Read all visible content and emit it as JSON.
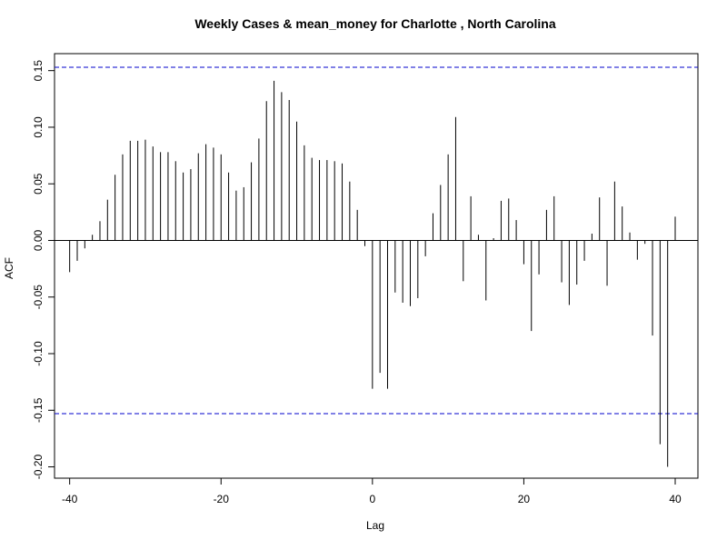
{
  "chart_data": {
    "type": "bar",
    "title": "Weekly Cases & mean_money for Charlotte , North Carolina",
    "xlabel": "Lag",
    "ylabel": "ACF",
    "xlim": [
      -42,
      43
    ],
    "ylim": [
      -0.21,
      0.165
    ],
    "x_ticks": [
      -40,
      -20,
      0,
      20,
      40
    ],
    "x_tick_labels": [
      "-40",
      "-20",
      "0",
      "20",
      "40"
    ],
    "y_ticks": [
      -0.2,
      -0.15,
      -0.1,
      -0.05,
      0.0,
      0.05,
      0.1,
      0.15
    ],
    "y_tick_labels": [
      "-0.20",
      "-0.15",
      "-0.10",
      "-0.05",
      "0.00",
      "0.05",
      "0.10",
      "0.15"
    ],
    "confidence_bound": 0.153,
    "confidence_color": "#0000CC",
    "line_color": "#000000",
    "grid": false,
    "x": [
      -40,
      -39,
      -38,
      -37,
      -36,
      -35,
      -34,
      -33,
      -32,
      -31,
      -30,
      -29,
      -28,
      -27,
      -26,
      -25,
      -24,
      -23,
      -22,
      -21,
      -20,
      -19,
      -18,
      -17,
      -16,
      -15,
      -14,
      -13,
      -12,
      -11,
      -10,
      -9,
      -8,
      -7,
      -6,
      -5,
      -4,
      -3,
      -2,
      -1,
      0,
      1,
      2,
      3,
      4,
      5,
      6,
      7,
      8,
      9,
      10,
      11,
      12,
      13,
      14,
      15,
      16,
      17,
      18,
      19,
      20,
      21,
      22,
      23,
      24,
      25,
      26,
      27,
      28,
      29,
      30,
      31,
      32,
      33,
      34,
      35,
      36,
      37,
      38,
      39,
      40
    ],
    "values": [
      -0.028,
      -0.018,
      -0.007,
      0.005,
      0.017,
      0.036,
      0.058,
      0.076,
      0.088,
      0.088,
      0.089,
      0.083,
      0.078,
      0.078,
      0.07,
      0.06,
      0.063,
      0.077,
      0.085,
      0.082,
      0.076,
      0.06,
      0.044,
      0.047,
      0.069,
      0.09,
      0.123,
      0.141,
      0.131,
      0.124,
      0.105,
      0.084,
      0.073,
      0.071,
      0.071,
      0.07,
      0.068,
      0.052,
      0.027,
      -0.005,
      -0.131,
      -0.117,
      -0.131,
      -0.046,
      -0.055,
      -0.058,
      -0.051,
      -0.014,
      0.024,
      0.049,
      0.076,
      0.109,
      -0.036,
      0.039,
      0.005,
      -0.053,
      0.002,
      0.035,
      0.037,
      0.018,
      -0.021,
      -0.08,
      -0.03,
      0.027,
      0.039,
      -0.037,
      -0.057,
      -0.039,
      -0.018,
      0.006,
      0.038,
      -0.04,
      0.052,
      0.03,
      0.007,
      -0.017,
      -0.003,
      -0.084,
      -0.18,
      -0.2,
      0.021
    ]
  }
}
